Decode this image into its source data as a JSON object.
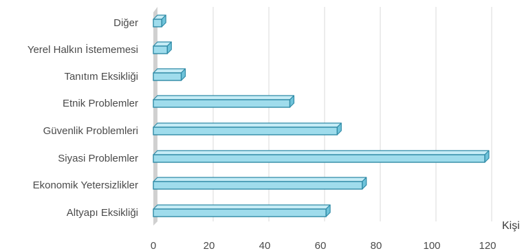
{
  "chart_data": {
    "type": "bar",
    "orientation": "horizontal",
    "style": "3d",
    "categories": [
      "Diğer",
      "Yerel Halkın İstememesi",
      "Tanıtım Eksikliği",
      "Etnik Problemler",
      "Güvenlik Problemleri",
      "Siyasi Problemler",
      "Ekonomik Yetersizlikler",
      "Altyapı Eksikliği"
    ],
    "values": [
      3,
      5,
      10,
      49,
      66,
      119,
      75,
      62
    ],
    "xlabel": "Kişi",
    "ylabel": "",
    "xlim": [
      0,
      120
    ],
    "xticks": [
      "0",
      "20",
      "40",
      "60",
      "80",
      "100",
      "120"
    ],
    "grid": true,
    "legend": "none",
    "colors": {
      "bar_front": "#9fdcec",
      "bar_top": "#c6ecf6",
      "bar_side": "#6fc3da",
      "bar_edge": "#2f8aa6",
      "grid": "#d9d9d9",
      "wall": "#d0d0d0"
    }
  }
}
